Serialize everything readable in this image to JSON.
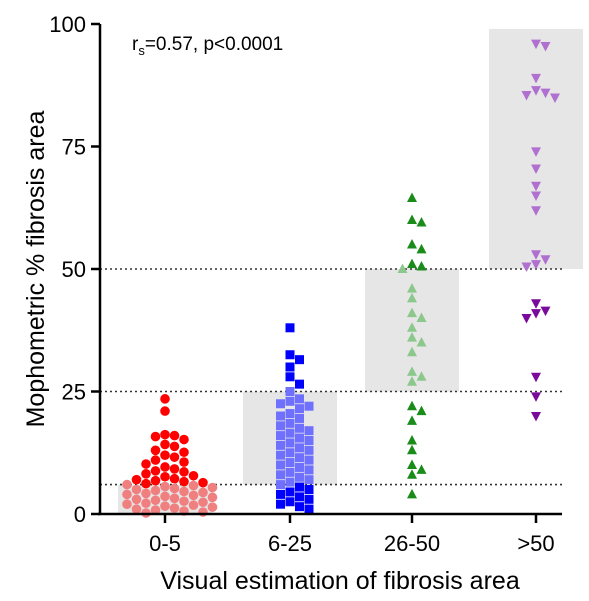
{
  "chart_data": {
    "type": "scatter",
    "title": "",
    "xlabel": "Visual estimation of fibrosis area",
    "ylabel": "Mophometric % fibrosis area",
    "ylim": [
      0,
      100
    ],
    "yticks": [
      "0",
      "25",
      "50",
      "75",
      "100"
    ],
    "categories": [
      "0-5",
      "6-25",
      "26-50",
      ">50"
    ],
    "annotation": {
      "r": "r",
      "sub": "s",
      "rest": "=0.57, p<0.0001"
    },
    "reference_lines": [
      6,
      25,
      50
    ],
    "shaded_ranges": [
      [
        0,
        6
      ],
      [
        6,
        25
      ],
      [
        25,
        50
      ],
      [
        50,
        99
      ]
    ],
    "series": [
      {
        "category": "0-5",
        "marker": "circle",
        "color": "#ff0000",
        "color_light": "#f08080",
        "values": [
          23.5,
          21.0,
          16.0,
          15.8,
          16.2,
          15.2,
          14.2,
          13.8,
          13.0,
          12.6,
          12.0,
          11.6,
          11.0,
          10.6,
          10.2,
          9.6,
          9.2,
          8.8,
          8.6,
          8.2,
          7.8,
          7.6,
          7.2,
          7.0,
          6.8,
          6.6,
          6.4,
          6.2,
          6.0,
          5.8,
          5.6,
          5.4,
          5.2,
          5.0,
          4.8,
          4.6,
          4.4,
          4.2,
          4.0,
          3.8,
          3.6,
          3.4,
          3.2,
          3.0,
          2.8,
          2.6,
          2.4,
          2.2,
          2.0,
          1.8,
          1.6,
          1.4,
          1.2,
          1.0,
          0.8,
          0.6,
          0.4,
          0.2
        ]
      },
      {
        "category": "6-25",
        "marker": "square",
        "color": "#0000ff",
        "color_light": "#7070ff",
        "values": [
          38.0,
          32.5,
          31.5,
          30.0,
          28.0,
          26.5,
          25.0,
          23.5,
          23.0,
          22.5,
          22.0,
          21.5,
          20.5,
          20.0,
          19.5,
          18.5,
          18.0,
          17.5,
          17.0,
          16.5,
          16.0,
          15.5,
          15.0,
          14.5,
          14.0,
          13.5,
          13.0,
          12.5,
          12.0,
          11.5,
          11.0,
          10.5,
          10.0,
          9.5,
          9.0,
          8.5,
          8.0,
          7.5,
          7.0,
          6.5,
          6.0,
          5.5,
          5.0,
          4.5,
          4.0,
          3.5,
          3.0,
          2.5,
          2.0,
          1.5,
          1.0
        ]
      },
      {
        "category": "26-50",
        "marker": "triangle-up",
        "color": "#1a8c1a",
        "color_light": "#8cc88c",
        "values": [
          64.5,
          60.0,
          59.5,
          55.0,
          54.0,
          51.0,
          50.5,
          50.0,
          46.0,
          44.0,
          41.0,
          40.0,
          38.0,
          36.0,
          35.0,
          33.0,
          29.0,
          28.0,
          27.0,
          22.0,
          21.0,
          19.0,
          15.0,
          13.0,
          10.0,
          9.0,
          8.0,
          4.0
        ]
      },
      {
        "category": ">50",
        "marker": "triangle-down",
        "color": "#7a0a9c",
        "color_light": "#b070d0",
        "values": [
          96.0,
          95.5,
          89.0,
          86.5,
          86.0,
          85.5,
          85.0,
          74.0,
          70.5,
          67.0,
          65.0,
          62.0,
          53.0,
          52.0,
          51.0,
          50.5,
          43.0,
          41.5,
          41.0,
          40.0,
          28.0,
          24.0,
          20.0
        ]
      }
    ]
  }
}
